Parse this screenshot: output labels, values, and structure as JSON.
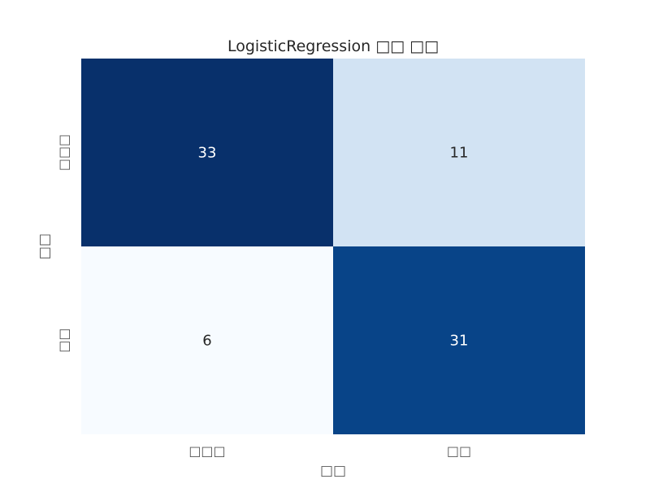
{
  "chart_data": {
    "type": "heatmap",
    "title": "LogisticRegression □□ □□",
    "xlabel": "□□",
    "ylabel": "□□",
    "x_categories": [
      "□□□",
      "□□"
    ],
    "y_categories": [
      "□□□",
      "□□"
    ],
    "values": [
      [
        33,
        11
      ],
      [
        6,
        31
      ]
    ],
    "colormap": "Blues",
    "colorbar": false,
    "grid": false,
    "colors": {
      "low": "#f7fbff",
      "high": "#08306b",
      "text_dark": "#262626",
      "text_light": "#ffffff"
    }
  }
}
